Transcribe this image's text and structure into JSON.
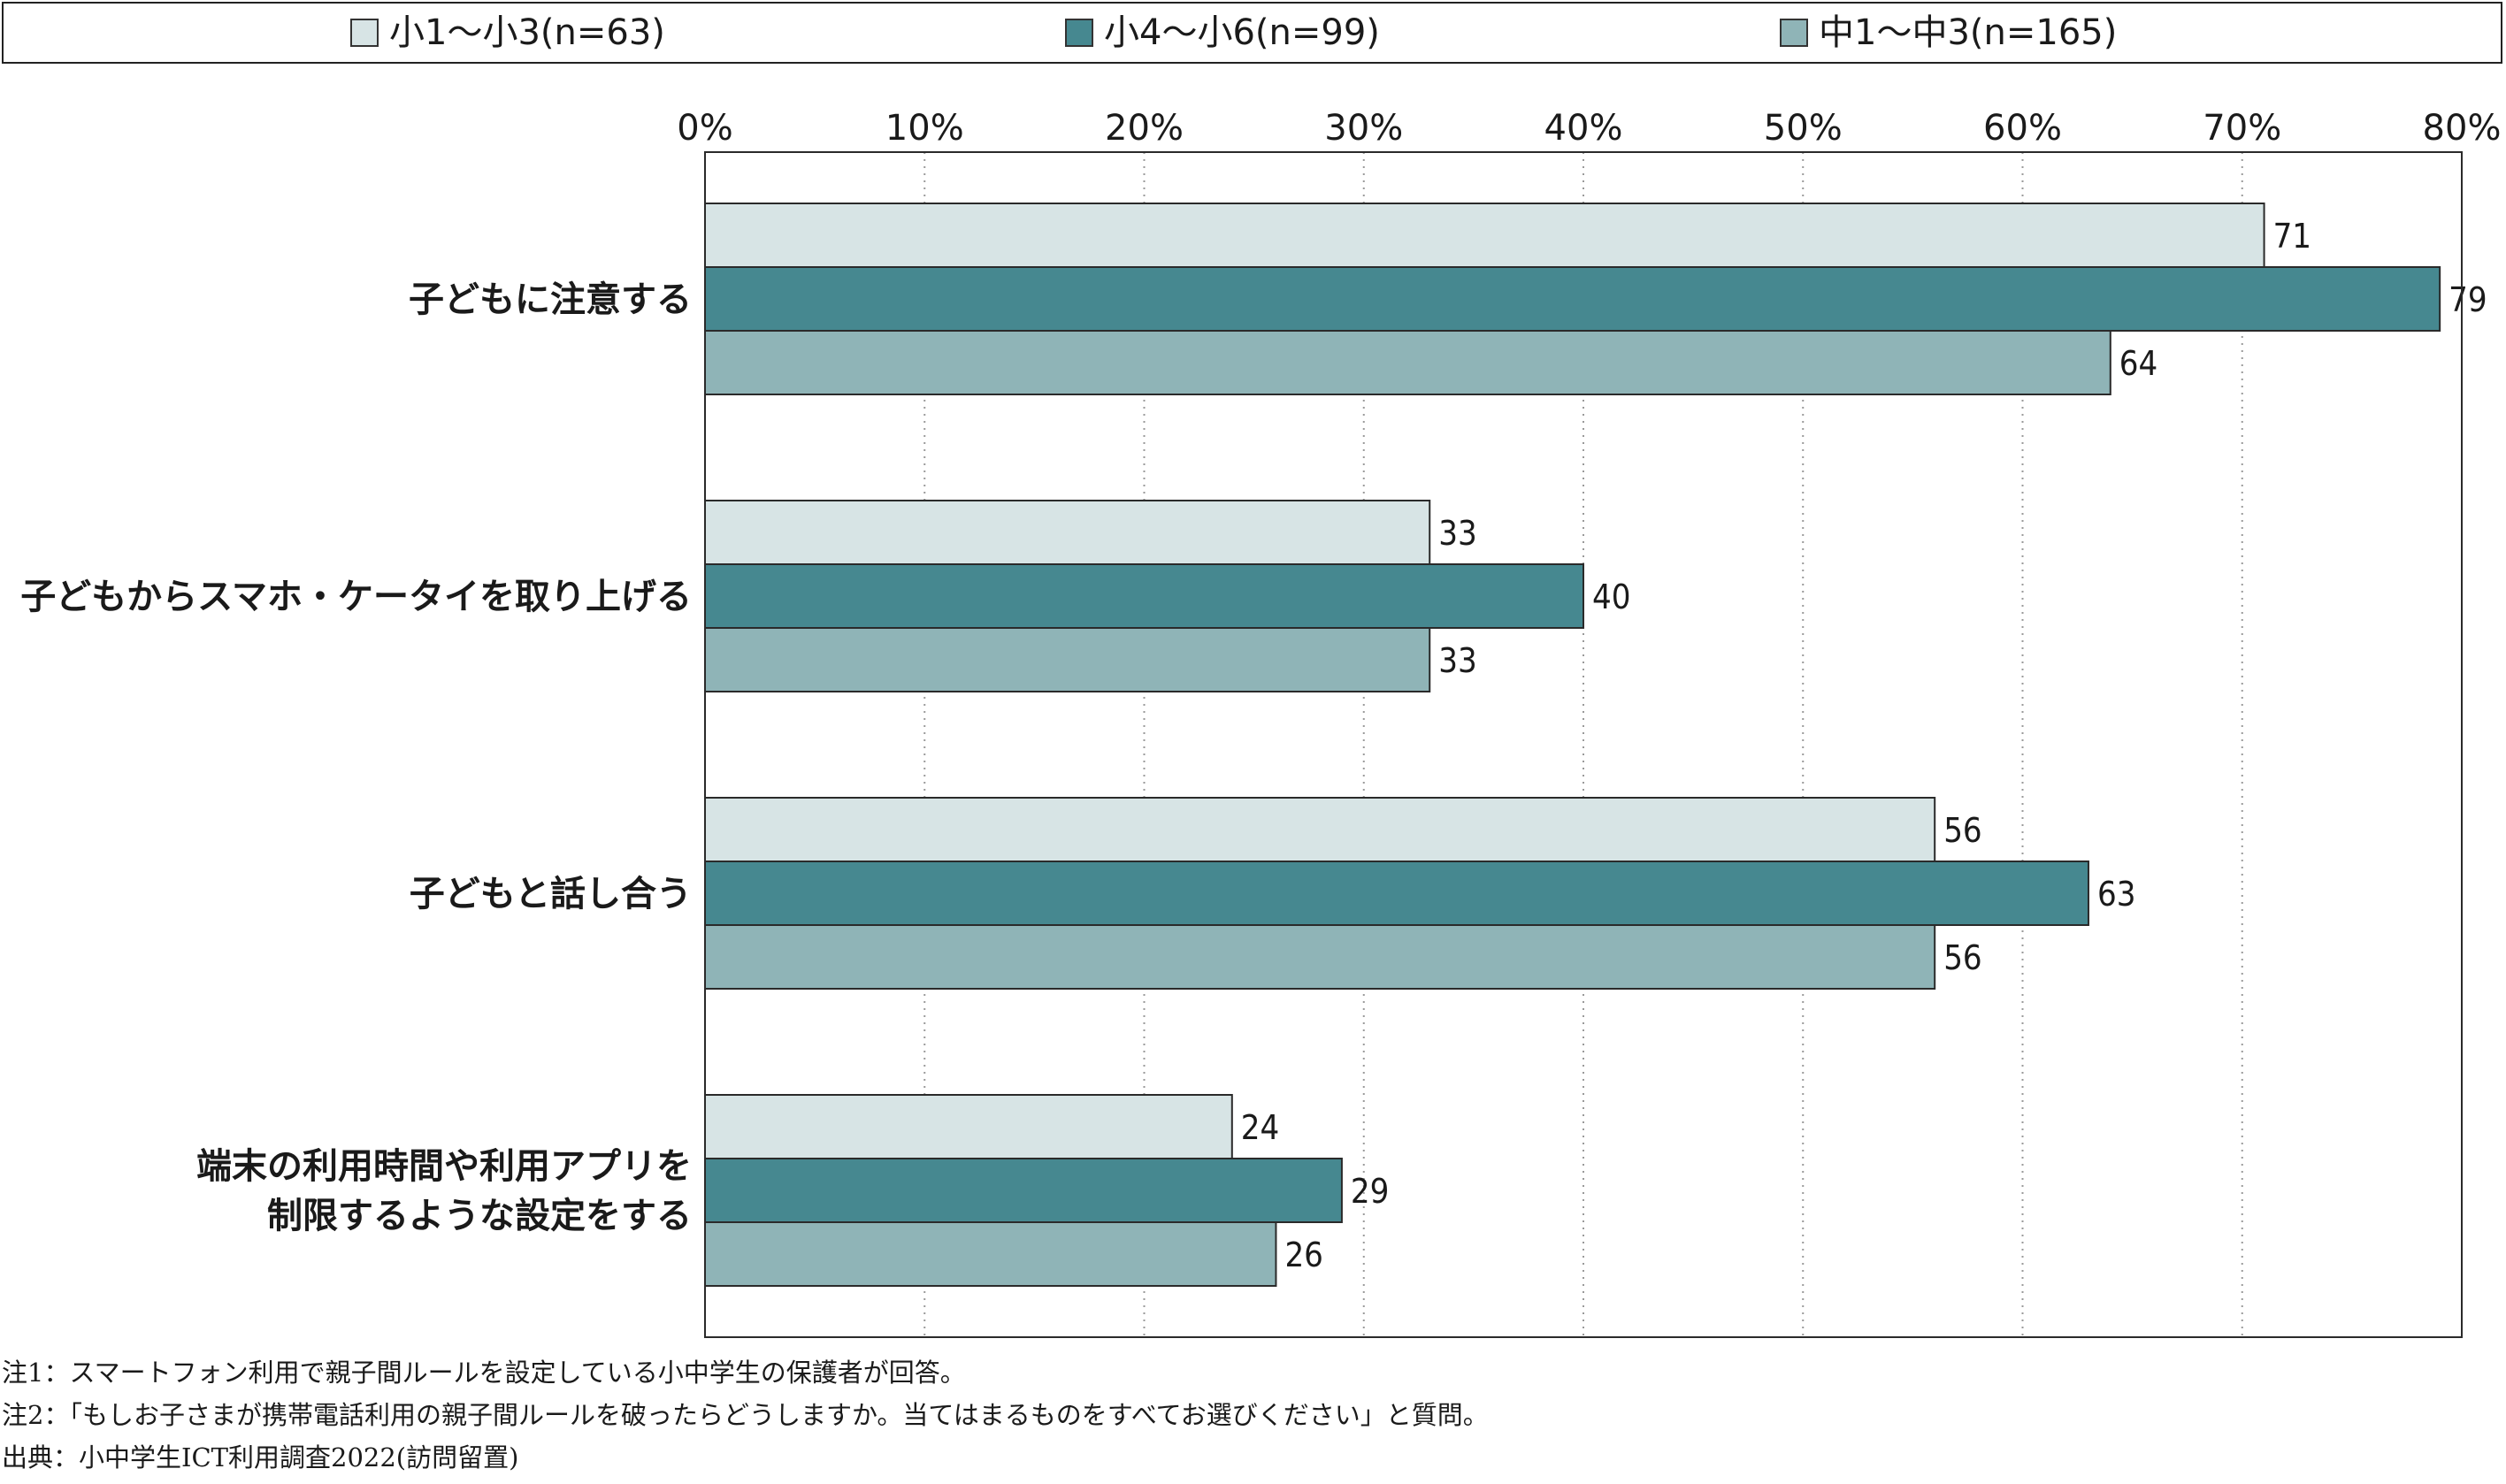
{
  "legend": {
    "items": [
      {
        "label": "小1〜小3(n=63)",
        "color": "#d7e4e5"
      },
      {
        "label": "小4〜小6(n=99)",
        "color": "#468890"
      },
      {
        "label": "中1〜中3(n=165)",
        "color": "#8fb4b7"
      }
    ]
  },
  "chart_data": {
    "type": "bar",
    "orientation": "horizontal",
    "title": "",
    "xlabel": "",
    "ylabel": "",
    "xlim": [
      0,
      80
    ],
    "x_ticks": [
      "0%",
      "10%",
      "20%",
      "30%",
      "40%",
      "50%",
      "60%",
      "70%",
      "80%"
    ],
    "grid": true,
    "legend_position": "top",
    "categories": [
      [
        "子どもに注意する"
      ],
      [
        "子どもからスマホ・ケータイを取り上げる"
      ],
      [
        "子どもと話し合う"
      ],
      [
        "端末の利用時間や利用アプリを",
        "制限するような設定をする"
      ]
    ],
    "series": [
      {
        "name": "小1〜小3(n=63)",
        "color": "#d7e4e5",
        "values": [
          71,
          33,
          56,
          24
        ],
        "labels": [
          "71",
          "33",
          "56",
          "24"
        ]
      },
      {
        "name": "小4〜小6(n=99)",
        "color": "#468890",
        "values": [
          79,
          40,
          63,
          29
        ],
        "labels": [
          "79",
          "40",
          "63",
          "29"
        ]
      },
      {
        "name": "中1〜中3(n=165)",
        "color": "#8fb4b7",
        "values": [
          64,
          33,
          56,
          26
        ],
        "labels": [
          "64",
          "33",
          "56",
          "26"
        ]
      }
    ]
  },
  "notes": [
    "注1：スマートフォン利用で親子間ルールを設定している小中学生の保護者が回答。",
    "注2：「もしお子さまが携帯電話利用の親子間ルールを破ったらどうしますか。当てはまるものをすべてお選びください」と質問。",
    "出典：小中学生ICT利用調査2022(訪問留置)"
  ]
}
